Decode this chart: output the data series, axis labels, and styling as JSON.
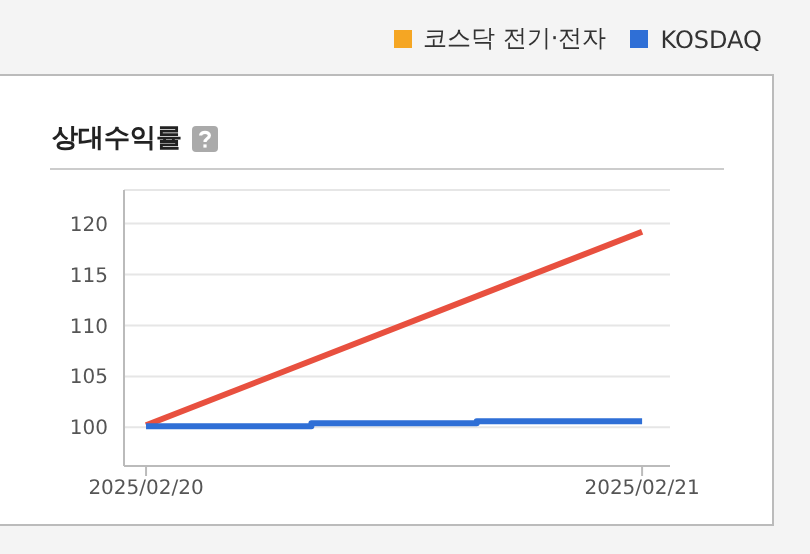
{
  "chart_data": {
    "type": "line",
    "title": "상대수익률",
    "xlim": [
      "2025-02-19T22:56",
      "2025-02-21T01:21"
    ],
    "xticks": [
      {
        "value": "2025-02-20",
        "label": "2025/02/20"
      },
      {
        "value": "2025-02-21",
        "label": "2025/02/21"
      }
    ],
    "ylim": [
      96.2,
      123.3
    ],
    "yticks": [
      100,
      105,
      110,
      115,
      120
    ],
    "grid": "y",
    "legend": "top right",
    "marker": "none",
    "line_style": "solid",
    "series": [
      {
        "color": "#e8503f",
        "x": [
          "2025-02-20T00:00",
          "2025-02-21T00:00"
        ],
        "values": [
          100.2,
          119.2
        ]
      },
      {
        "name": "코스닥 전기·전자",
        "color": "#f5a623"
      },
      {
        "name": "KOSDAQ",
        "type": "step",
        "color": "#2f6fd6",
        "x": [
          "2025-02-20T00:00",
          "2025-02-20T08:00",
          "2025-02-20T16:00",
          "2025-02-21T00:00"
        ],
        "values": [
          100.1,
          100.4,
          100.6,
          100.6
        ]
      }
    ]
  }
}
